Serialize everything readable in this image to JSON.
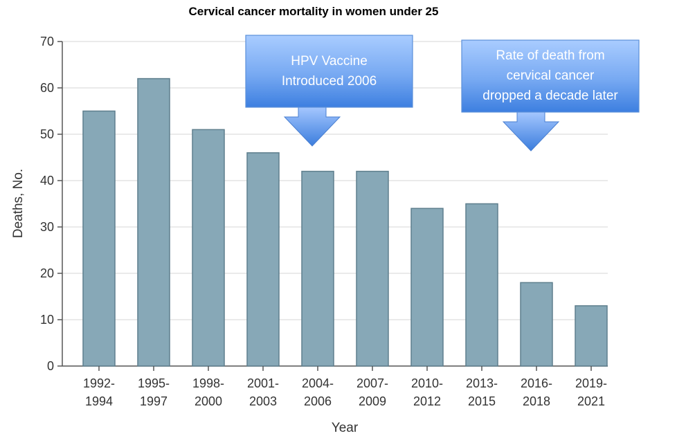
{
  "chart_data": {
    "type": "bar",
    "title": "Cervical cancer mortality in women under 25",
    "xlabel": "Year",
    "ylabel": "Deaths, No.",
    "ylim": [
      0,
      70
    ],
    "yticks": [
      "0",
      "10",
      "20",
      "30",
      "40",
      "50",
      "60",
      "70"
    ],
    "categories": [
      [
        "1992-",
        "1994"
      ],
      [
        "1995-",
        "1997"
      ],
      [
        "1998-",
        "2000"
      ],
      [
        "2001-",
        "2003"
      ],
      [
        "2004-",
        "2006"
      ],
      [
        "2007-",
        "2009"
      ],
      [
        "2010-",
        "2012"
      ],
      [
        "2013-",
        "2015"
      ],
      [
        "2016-",
        "2018"
      ],
      [
        "2019-",
        "2021"
      ]
    ],
    "values": [
      55,
      62,
      51,
      46,
      42,
      42,
      34,
      35,
      18,
      13
    ],
    "grid": true,
    "bar_color": "#87a8b7",
    "bar_edge_color": "#5f7f8d",
    "annotations": [
      {
        "lines": [
          "HPV Vaccine",
          "Introduced 2006"
        ],
        "points_to_category": 4
      },
      {
        "lines": [
          "Rate of death from",
          "cervical cancer",
          "dropped a decade later"
        ],
        "points_to_category": 8
      }
    ]
  }
}
